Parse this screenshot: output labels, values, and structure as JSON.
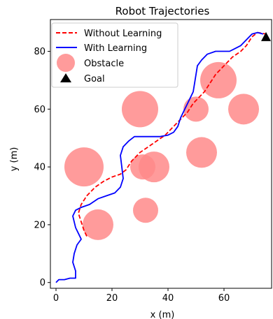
{
  "chart_data": {
    "type": "line",
    "title": "Robot Trajectories",
    "xlabel": "x (m)",
    "ylabel": "y (m)",
    "xlim": [
      -2,
      77
    ],
    "ylim": [
      -2,
      91
    ],
    "xticks": [
      0,
      20,
      40,
      60
    ],
    "yticks": [
      0,
      20,
      40,
      60,
      80
    ],
    "legend_position": "top-left",
    "legend": [
      {
        "label": "Without Learning",
        "kind": "dashed-line",
        "color": "#ff0000"
      },
      {
        "label": "With Learning",
        "kind": "line",
        "color": "#0000ff"
      },
      {
        "label": "Obstacle",
        "kind": "circle",
        "color": "#ff8a8a"
      },
      {
        "label": "Goal",
        "kind": "triangle",
        "color": "#000000"
      }
    ],
    "obstacles": [
      {
        "x": 10,
        "y": 40,
        "r": 7
      },
      {
        "x": 15,
        "y": 20,
        "r": 5.5
      },
      {
        "x": 30,
        "y": 60,
        "r": 6.5
      },
      {
        "x": 31,
        "y": 40,
        "r": 4.5
      },
      {
        "x": 35,
        "y": 40,
        "r": 5.5
      },
      {
        "x": 32,
        "y": 25,
        "r": 4.5
      },
      {
        "x": 50,
        "y": 60,
        "r": 4.5
      },
      {
        "x": 52,
        "y": 45,
        "r": 5.5
      },
      {
        "x": 58,
        "y": 70,
        "r": 6.5
      },
      {
        "x": 67,
        "y": 60,
        "r": 5.5
      }
    ],
    "goal": {
      "x": 75,
      "y": 85
    },
    "series": [
      {
        "name": "Without Learning",
        "color": "#ff0000",
        "points": [
          [
            11,
            16
          ],
          [
            10,
            18
          ],
          [
            9,
            21
          ],
          [
            8,
            24
          ],
          [
            9,
            27
          ],
          [
            11,
            30
          ],
          [
            14,
            33
          ],
          [
            17,
            35
          ],
          [
            20,
            36.5
          ],
          [
            23,
            37.5
          ],
          [
            25,
            39
          ],
          [
            27,
            42
          ],
          [
            30,
            45
          ],
          [
            33,
            47
          ],
          [
            36,
            49
          ],
          [
            39,
            51
          ],
          [
            41,
            53
          ],
          [
            43,
            55
          ],
          [
            45,
            57
          ],
          [
            47,
            59
          ],
          [
            49,
            62
          ],
          [
            51,
            64
          ],
          [
            53,
            66
          ],
          [
            55,
            69
          ],
          [
            57,
            72
          ],
          [
            60,
            75
          ],
          [
            63,
            78
          ],
          [
            66,
            80
          ],
          [
            68,
            82
          ],
          [
            70,
            85
          ],
          [
            72,
            86.5
          ],
          [
            75,
            86
          ]
        ]
      },
      {
        "name": "With Learning",
        "color": "#0000ff",
        "points": [
          [
            0,
            0
          ],
          [
            1,
            1
          ],
          [
            3,
            1
          ],
          [
            5,
            1.5
          ],
          [
            7,
            1.5
          ],
          [
            7,
            4
          ],
          [
            6,
            7
          ],
          [
            6.5,
            10
          ],
          [
            7.5,
            13
          ],
          [
            9,
            15
          ],
          [
            8,
            17
          ],
          [
            7,
            19
          ],
          [
            6.5,
            21
          ],
          [
            6,
            23
          ],
          [
            7,
            25
          ],
          [
            9,
            26
          ],
          [
            12,
            27
          ],
          [
            15,
            29
          ],
          [
            18,
            30
          ],
          [
            21,
            31
          ],
          [
            23,
            33
          ],
          [
            24,
            36
          ],
          [
            23.5,
            40
          ],
          [
            23,
            44
          ],
          [
            24,
            47
          ],
          [
            26,
            49
          ],
          [
            28,
            50.5
          ],
          [
            31,
            50.5
          ],
          [
            34,
            50.5
          ],
          [
            37,
            50.5
          ],
          [
            40,
            51
          ],
          [
            42,
            52
          ],
          [
            43.5,
            54
          ],
          [
            44.5,
            57
          ],
          [
            46,
            60
          ],
          [
            47,
            62
          ],
          [
            48,
            64
          ],
          [
            49,
            66
          ],
          [
            49.5,
            69
          ],
          [
            50,
            72
          ],
          [
            50.5,
            75
          ],
          [
            52,
            77
          ],
          [
            54,
            79
          ],
          [
            57,
            80
          ],
          [
            62,
            80
          ],
          [
            64,
            81
          ],
          [
            66,
            82
          ],
          [
            68,
            84
          ],
          [
            70,
            86
          ],
          [
            72,
            86.5
          ],
          [
            74,
            86
          ]
        ]
      }
    ]
  }
}
